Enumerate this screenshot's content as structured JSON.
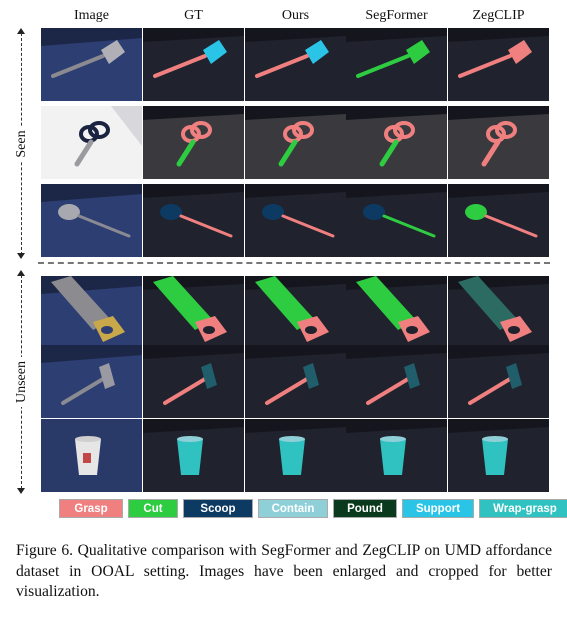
{
  "columns": [
    "Image",
    "GT",
    "Ours",
    "SegFormer",
    "ZegCLIP"
  ],
  "groups": {
    "seen": "Seen",
    "unseen": "Unseen"
  },
  "rows": [
    {
      "object": "spatula",
      "group": "seen"
    },
    {
      "object": "scissors",
      "group": "seen"
    },
    {
      "object": "spoon",
      "group": "seen"
    },
    {
      "object": "saw",
      "group": "unseen"
    },
    {
      "object": "hammer",
      "group": "unseen"
    },
    {
      "object": "cup",
      "group": "unseen"
    }
  ],
  "legend": [
    {
      "label": "Grasp",
      "color": "#f08080"
    },
    {
      "label": "Cut",
      "color": "#2ecc40"
    },
    {
      "label": "Scoop",
      "color": "#0d3a63"
    },
    {
      "label": "Contain",
      "color": "#8fd0d8"
    },
    {
      "label": "Pound",
      "color": "#0a3a1e"
    },
    {
      "label": "Support",
      "color": "#29c4e6"
    },
    {
      "label": "Wrap-grasp",
      "color": "#2fc2c0"
    }
  ],
  "caption": "Figure 6.  Qualitative comparison with SegFormer and ZegCLIP on UMD affordance dataset in OOAL setting. Images have been enlarged and cropped for better visualization."
}
